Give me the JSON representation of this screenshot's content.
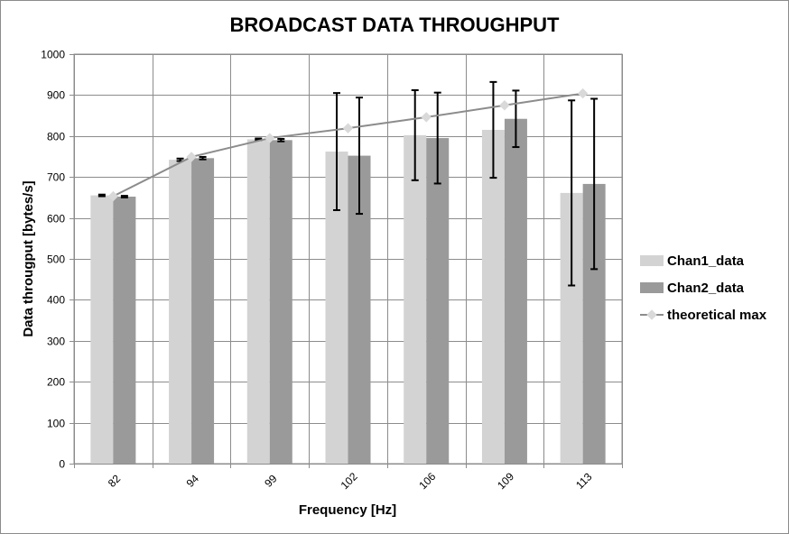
{
  "chart_data": {
    "type": "bar",
    "title": "BROADCAST DATA THROUGHPUT",
    "xlabel": "Frequency [Hz]",
    "ylabel": "Data througput [bytes/s]",
    "ylim": [
      0,
      1000
    ],
    "yticks": [
      0,
      100,
      200,
      300,
      400,
      500,
      600,
      700,
      800,
      900,
      1000
    ],
    "grid": true,
    "legend_position": "right",
    "categories": [
      "82",
      "94",
      "99",
      "102",
      "106",
      "109",
      "113"
    ],
    "series": [
      {
        "name": "Chan1_data",
        "kind": "bar",
        "color": "#d3d3d3",
        "values": [
          655,
          742,
          792,
          762,
          802,
          815,
          661
        ],
        "error": [
          2,
          3,
          2,
          143,
          110,
          117,
          226
        ]
      },
      {
        "name": "Chan2_data",
        "kind": "bar",
        "color": "#9a9a9a",
        "values": [
          652,
          746,
          790,
          752,
          795,
          842,
          683
        ],
        "error": [
          2,
          3,
          3,
          142,
          111,
          69,
          208
        ]
      },
      {
        "name": "theoretical max",
        "kind": "line",
        "color": "#8c8c8c",
        "marker_color": "#d9d9d9",
        "values": [
          653,
          749,
          795,
          819,
          846,
          875,
          904
        ]
      }
    ]
  }
}
